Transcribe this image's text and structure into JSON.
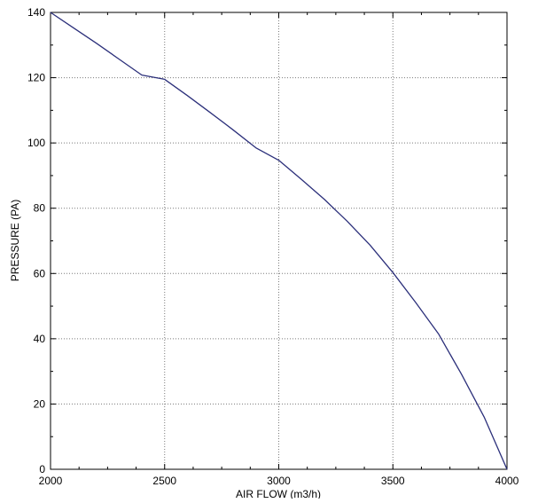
{
  "chart_data": {
    "type": "line",
    "xlabel": "AIR FLOW (m3/h)",
    "ylabel": "PRESSURE (PA)",
    "xlim": [
      2000,
      4000
    ],
    "ylim": [
      0,
      140
    ],
    "x_ticks": [
      2000,
      2500,
      3000,
      3500,
      4000
    ],
    "y_ticks": [
      0,
      20,
      40,
      60,
      80,
      100,
      120,
      140
    ],
    "x_tick_labels": [
      "2000",
      "2500",
      "3000",
      "3500",
      "4000"
    ],
    "y_tick_labels": [
      "0",
      "20",
      "40",
      "60",
      "80",
      "100",
      "120",
      "140"
    ],
    "grid": true,
    "legend": "none",
    "series": [
      {
        "color": "#2b2f7a",
        "x": [
          2000,
          2100,
          2200,
          2300,
          2400,
          2500,
          2600,
          2700,
          2800,
          2900,
          3000,
          3100,
          3200,
          3300,
          3400,
          3500,
          3600,
          3700,
          3800,
          3900,
          4000
        ],
        "y": [
          140,
          135.3,
          130.6,
          125.7,
          120.8,
          119.5,
          114.5,
          109.3,
          104.0,
          98.5,
          94.7,
          88.8,
          82.7,
          76.0,
          68.7,
          60.3,
          51.1,
          41.5,
          29.2,
          16.0,
          0
        ]
      }
    ]
  }
}
